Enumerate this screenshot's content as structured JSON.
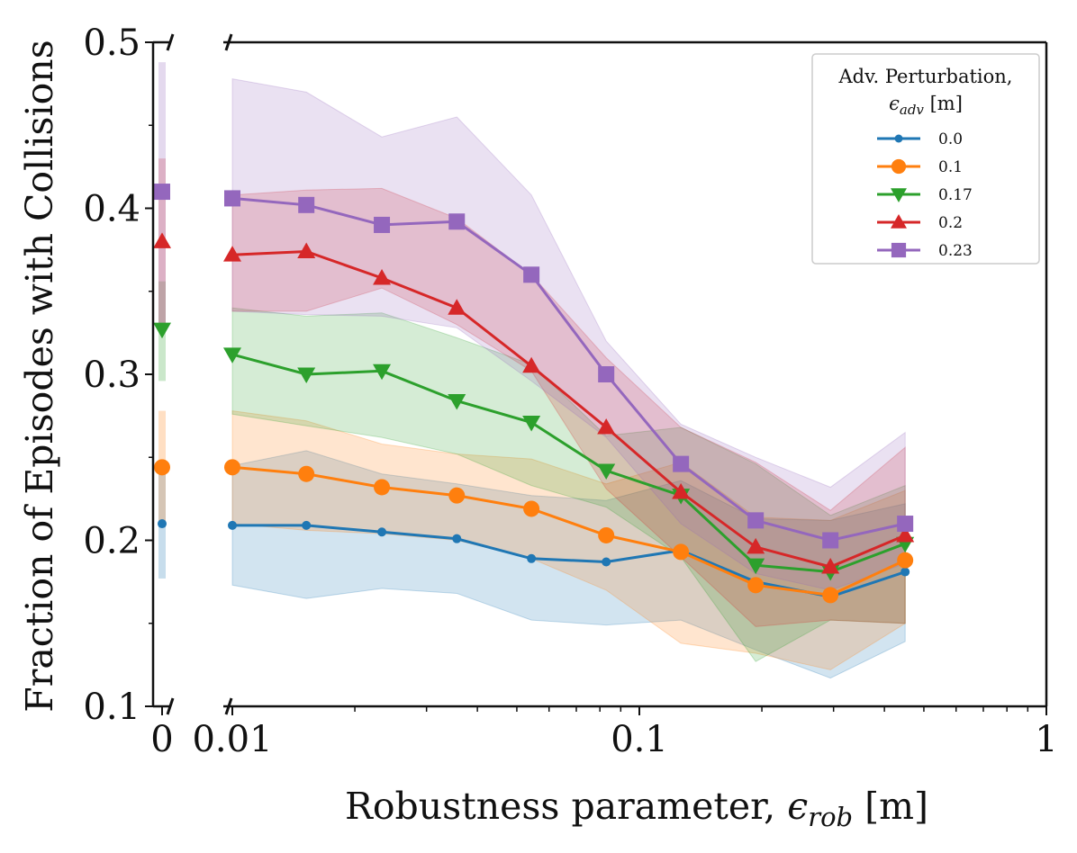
{
  "chart_data": {
    "type": "line",
    "title": "",
    "xlabel": "Robustness parameter, ϵrob [m]",
    "xlabel_main": "Robustness parameter, ",
    "xlabel_symbol": "ϵ",
    "xlabel_sub": "rob",
    "xlabel_unit": " [m]",
    "ylabel": "Fraction of Episodes with Collisions",
    "xscale": "log",
    "xlim": [
      0.01,
      1
    ],
    "ylim": [
      0.1,
      0.5
    ],
    "x_ticks": [
      0.01,
      0.1,
      1
    ],
    "x_tick_labels": [
      "0.01",
      "0.1",
      "1"
    ],
    "y_ticks": [
      0.1,
      0.2,
      0.3,
      0.4,
      0.5
    ],
    "y_tick_labels": [
      "0.1",
      "0.2",
      "0.3",
      "0.4",
      "0.5"
    ],
    "baseline_x_label": "0",
    "broken_axis": true,
    "x": [
      0.01,
      0.0152,
      0.0233,
      0.0356,
      0.0543,
      0.0829,
      0.1265,
      0.1931,
      0.2947,
      0.4498
    ],
    "legend": {
      "title_line1": "Adv. Perturbation,",
      "title_line2_symbol": "ϵ",
      "title_line2_sub": "adv",
      "title_line2_unit": " [m]",
      "location": "upper-right"
    },
    "series": [
      {
        "name": "0.0",
        "color": "#1f77b4",
        "marker": "dot",
        "baseline": 0.21,
        "baseline_band": [
          0.177,
          0.242
        ],
        "values": [
          0.209,
          0.209,
          0.205,
          0.201,
          0.189,
          0.187,
          0.194,
          0.175,
          0.166,
          0.181
        ],
        "lower": [
          0.173,
          0.165,
          0.171,
          0.168,
          0.152,
          0.149,
          0.152,
          0.134,
          0.117,
          0.139
        ],
        "upper": [
          0.245,
          0.254,
          0.24,
          0.234,
          0.227,
          0.224,
          0.236,
          0.213,
          0.212,
          0.222
        ]
      },
      {
        "name": "0.1",
        "color": "#ff7f0e",
        "marker": "circle",
        "baseline": 0.244,
        "baseline_band": [
          0.21,
          0.278
        ],
        "values": [
          0.244,
          0.24,
          0.232,
          0.227,
          0.219,
          0.203,
          0.193,
          0.173,
          0.167,
          0.188
        ],
        "lower": [
          0.21,
          0.206,
          0.204,
          0.2,
          0.189,
          0.17,
          0.138,
          0.132,
          0.122,
          0.15
        ],
        "upper": [
          0.278,
          0.272,
          0.258,
          0.252,
          0.249,
          0.234,
          0.247,
          0.214,
          0.212,
          0.23
        ]
      },
      {
        "name": "0.17",
        "color": "#2ca02c",
        "marker": "triangle-down",
        "baseline": 0.327,
        "baseline_band": [
          0.296,
          0.356
        ],
        "values": [
          0.312,
          0.3,
          0.302,
          0.284,
          0.271,
          0.242,
          0.227,
          0.185,
          0.181,
          0.198
        ],
        "lower": [
          0.276,
          0.269,
          0.262,
          0.252,
          0.233,
          0.22,
          0.19,
          0.127,
          0.152,
          0.15
        ],
        "upper": [
          0.34,
          0.335,
          0.337,
          0.322,
          0.306,
          0.263,
          0.268,
          0.246,
          0.215,
          0.233
        ]
      },
      {
        "name": "0.2",
        "color": "#d62728",
        "marker": "triangle-up",
        "baseline": 0.38,
        "baseline_band": [
          0.33,
          0.43
        ],
        "values": [
          0.372,
          0.374,
          0.358,
          0.34,
          0.305,
          0.268,
          0.229,
          0.196,
          0.184,
          0.203
        ],
        "lower": [
          0.338,
          0.338,
          0.352,
          0.33,
          0.302,
          0.231,
          0.19,
          0.148,
          0.152,
          0.15
        ],
        "upper": [
          0.408,
          0.411,
          0.412,
          0.394,
          0.36,
          0.31,
          0.268,
          0.247,
          0.218,
          0.256
        ]
      },
      {
        "name": "0.23",
        "color": "#9467bd",
        "marker": "square",
        "baseline": 0.41,
        "baseline_band": [
          0.33,
          0.488
        ],
        "values": [
          0.406,
          0.402,
          0.39,
          0.392,
          0.36,
          0.3,
          0.246,
          0.212,
          0.2,
          0.21
        ],
        "lower": [
          0.338,
          0.336,
          0.335,
          0.328,
          0.296,
          0.262,
          0.21,
          0.18,
          0.17,
          0.186
        ],
        "upper": [
          0.478,
          0.47,
          0.443,
          0.455,
          0.408,
          0.32,
          0.27,
          0.25,
          0.232,
          0.265
        ]
      }
    ]
  }
}
